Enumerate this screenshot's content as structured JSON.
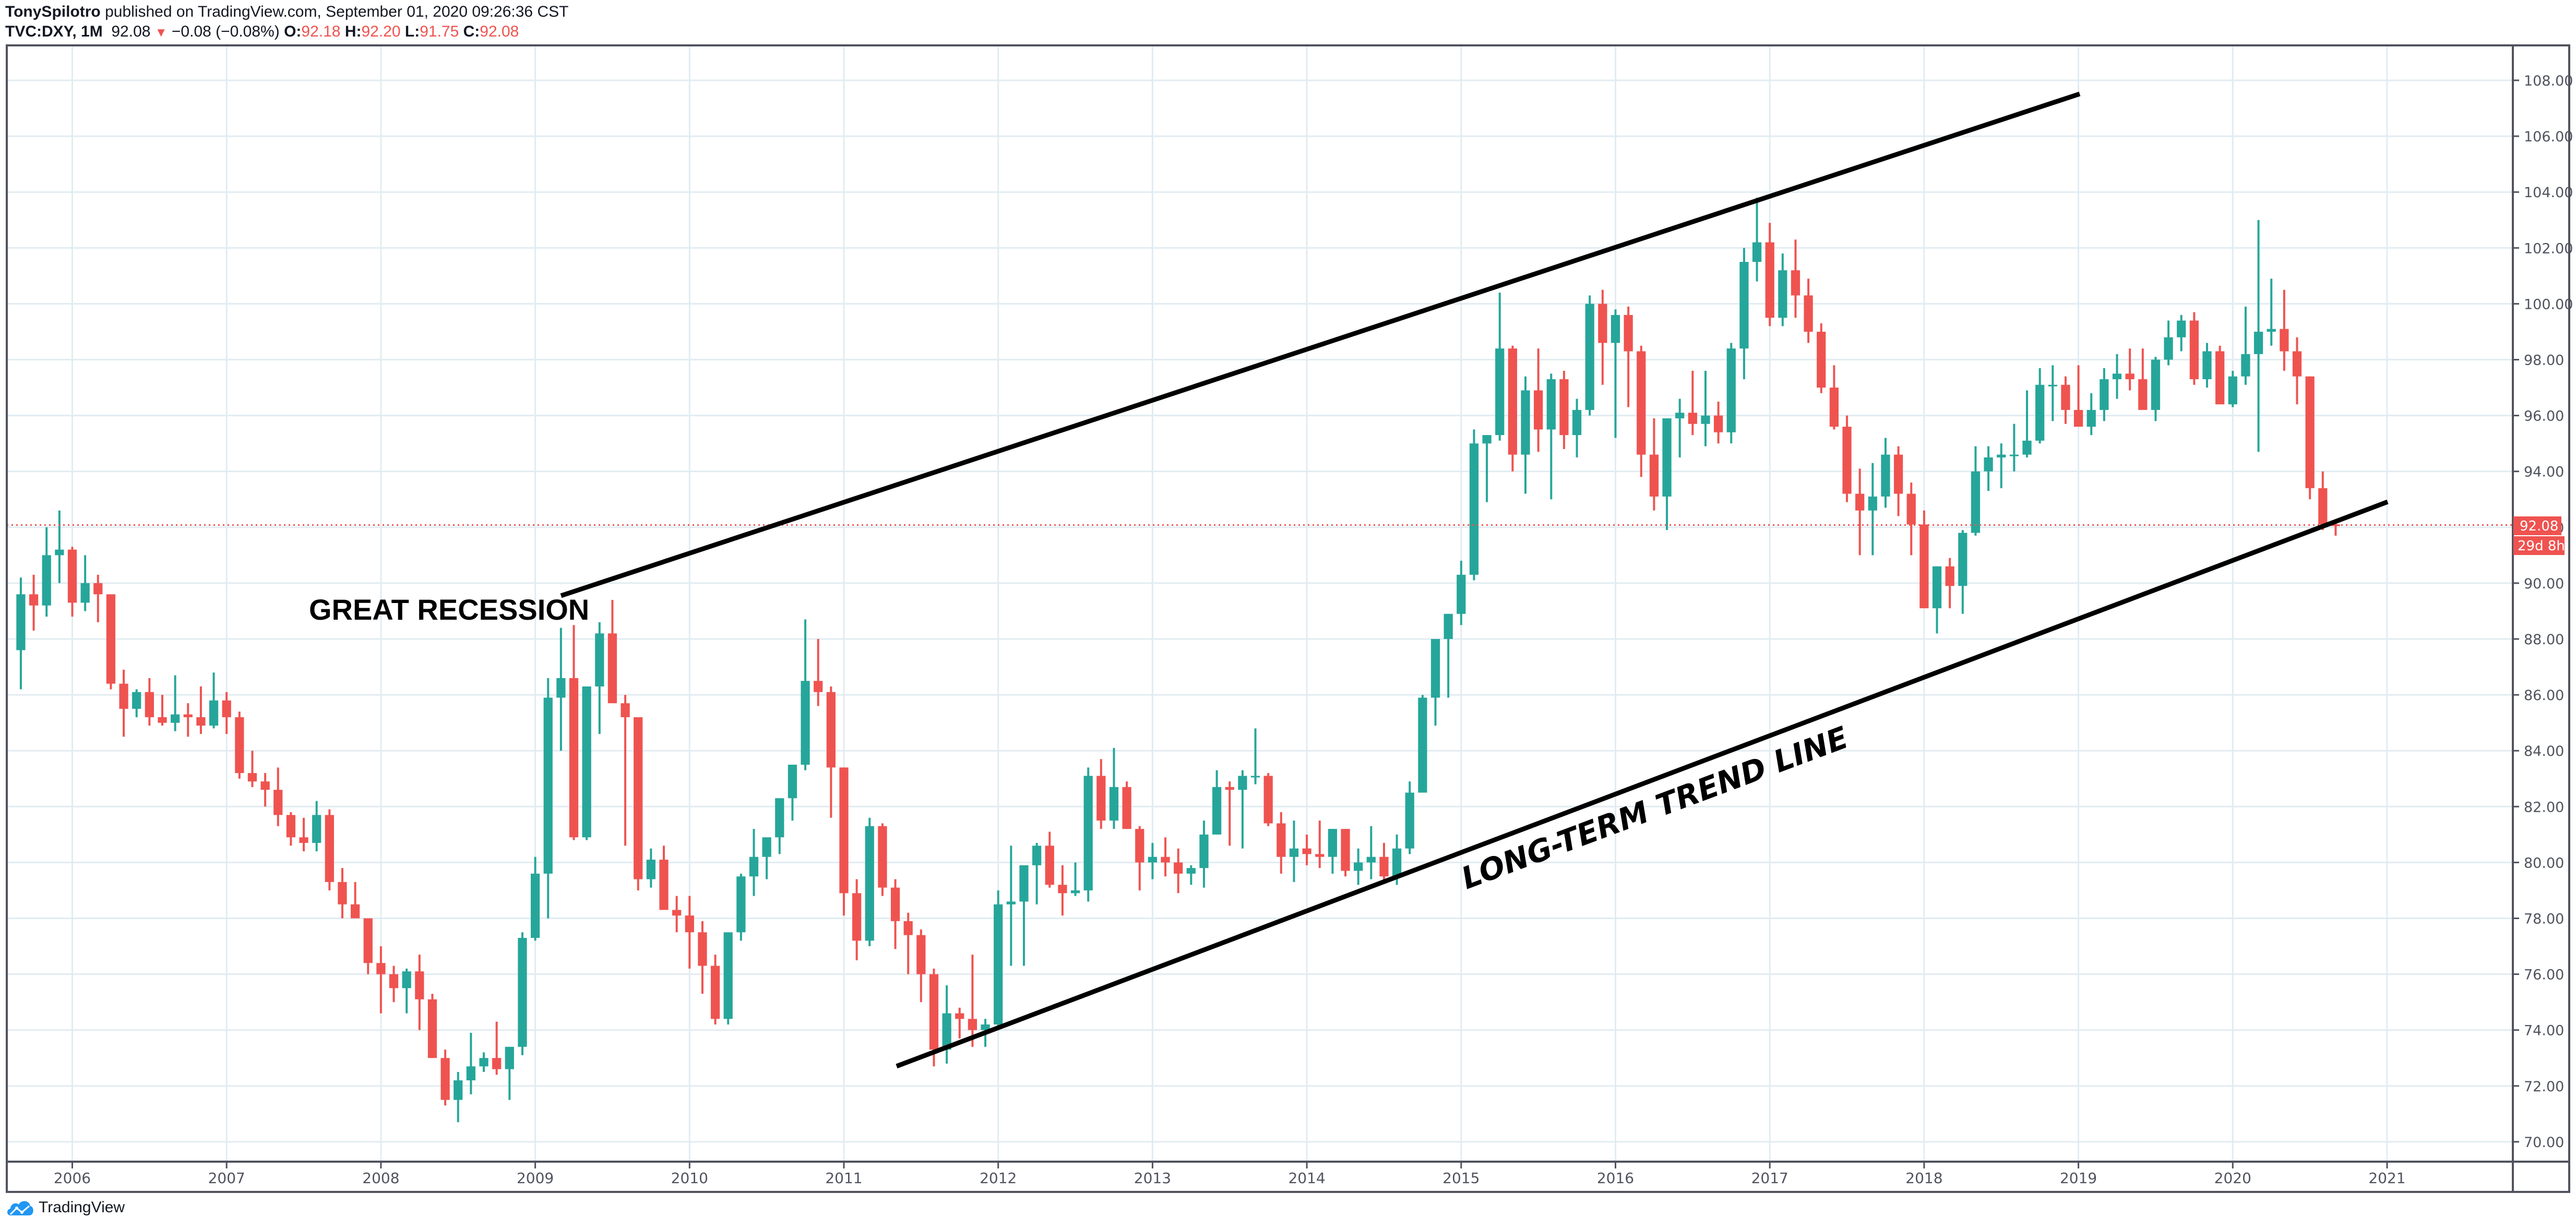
{
  "header": {
    "author": "TonySpilotro",
    "published_text": " published on TradingView.com, September 01, 2020 09:26:36 CST",
    "symbol": "TVC:DXY, 1M",
    "last": "92.08",
    "change_icon": "down-triangle-icon",
    "change": "−0.08 (−0.08%)",
    "o_label": "O:",
    "o": "92.18",
    "h_label": "H:",
    "h": "92.20",
    "l_label": "L:",
    "l": "91.75",
    "c_label": "C:",
    "c": "92.08"
  },
  "price_axis": {
    "labels": [
      "108.00",
      "106.00",
      "104.00",
      "102.00",
      "100.00",
      "98.00",
      "96.00",
      "94.00",
      "92.00",
      "90.00",
      "88.00",
      "86.00",
      "84.00",
      "82.00",
      "80.00",
      "78.00",
      "76.00",
      "74.00",
      "72.00",
      "70.00"
    ],
    "last_price_label": "92.08",
    "countdown_label": "29d 8h"
  },
  "time_axis": {
    "labels": [
      "2006",
      "2007",
      "2008",
      "2009",
      "2010",
      "2011",
      "2012",
      "2013",
      "2014",
      "2015",
      "2016",
      "2017",
      "2018",
      "2019",
      "2020",
      "2021"
    ]
  },
  "annotations": {
    "great_recession": "GREAT RECESSION",
    "trend_line": "LONG-TERM TREND LINE"
  },
  "footer": {
    "brand": "TradingView",
    "logo_icon": "tradingview-cloud-icon"
  },
  "colors": {
    "up": "#26a69a",
    "down": "#ef5350",
    "grid": "#e1ecf2",
    "axis": "#50535e",
    "trend": "#000000"
  },
  "chart_data": {
    "type": "candlestick",
    "title": "TVC:DXY, 1M",
    "xlabel": "",
    "ylabel": "",
    "ylim": [
      70,
      108
    ],
    "grid": true,
    "start": "2005-09",
    "interval": "1M",
    "ohlc": [
      [
        87.6,
        90.2,
        86.2,
        89.6
      ],
      [
        89.6,
        90.3,
        88.3,
        89.2
      ],
      [
        89.2,
        92.0,
        88.8,
        91.0
      ],
      [
        91.0,
        92.6,
        90.0,
        91.2
      ],
      [
        91.2,
        91.3,
        88.8,
        89.3
      ],
      [
        89.3,
        91.0,
        89.0,
        90.0
      ],
      [
        90.0,
        90.3,
        88.6,
        89.6
      ],
      [
        89.6,
        89.6,
        86.2,
        86.4
      ],
      [
        86.4,
        86.9,
        84.5,
        85.5
      ],
      [
        85.5,
        86.2,
        85.2,
        86.1
      ],
      [
        86.1,
        86.6,
        84.9,
        85.2
      ],
      [
        85.2,
        86.0,
        84.9,
        85.0
      ],
      [
        85.0,
        86.7,
        84.7,
        85.3
      ],
      [
        85.3,
        85.7,
        84.5,
        85.2
      ],
      [
        85.2,
        86.3,
        84.6,
        84.9
      ],
      [
        84.9,
        86.8,
        84.8,
        85.8
      ],
      [
        85.8,
        86.1,
        84.6,
        85.2
      ],
      [
        85.2,
        85.4,
        83.0,
        83.2
      ],
      [
        83.2,
        84.0,
        82.7,
        82.9
      ],
      [
        82.9,
        83.2,
        82.0,
        82.6
      ],
      [
        82.6,
        83.4,
        81.3,
        81.7
      ],
      [
        81.7,
        81.8,
        80.6,
        80.9
      ],
      [
        80.9,
        81.6,
        80.4,
        80.7
      ],
      [
        80.7,
        82.2,
        80.4,
        81.7
      ],
      [
        81.7,
        81.9,
        79.0,
        79.3
      ],
      [
        79.3,
        79.8,
        78.0,
        78.5
      ],
      [
        78.5,
        79.3,
        78.1,
        78.0
      ],
      [
        78.0,
        78.0,
        76.0,
        76.4
      ],
      [
        76.4,
        77.0,
        74.6,
        76.0
      ],
      [
        76.0,
        76.3,
        75.0,
        75.5
      ],
      [
        75.5,
        76.2,
        74.6,
        76.1
      ],
      [
        76.1,
        76.7,
        74.0,
        75.1
      ],
      [
        75.1,
        75.3,
        73.0,
        73.0
      ],
      [
        73.0,
        73.3,
        71.3,
        71.5
      ],
      [
        71.5,
        72.5,
        70.7,
        72.2
      ],
      [
        72.2,
        73.9,
        71.7,
        72.7
      ],
      [
        72.7,
        73.2,
        72.5,
        73.0
      ],
      [
        73.0,
        74.3,
        72.4,
        72.6
      ],
      [
        72.6,
        73.4,
        71.5,
        73.4
      ],
      [
        73.4,
        77.5,
        73.1,
        77.3
      ],
      [
        77.3,
        80.2,
        77.2,
        79.6
      ],
      [
        79.6,
        86.6,
        78.0,
        85.9
      ],
      [
        85.9,
        88.4,
        84.0,
        86.6
      ],
      [
        86.6,
        88.5,
        80.8,
        80.9
      ],
      [
        80.9,
        86.3,
        80.8,
        86.3
      ],
      [
        86.3,
        88.6,
        84.6,
        88.2
      ],
      [
        88.2,
        89.4,
        86.5,
        85.7
      ],
      [
        85.7,
        86.0,
        80.6,
        85.2
      ],
      [
        85.2,
        85.2,
        79.0,
        79.4
      ],
      [
        79.4,
        80.5,
        79.1,
        80.1
      ],
      [
        80.1,
        80.6,
        78.4,
        78.3
      ],
      [
        78.3,
        78.8,
        77.5,
        78.1
      ],
      [
        78.1,
        78.8,
        76.2,
        77.5
      ],
      [
        77.5,
        77.9,
        75.3,
        76.3
      ],
      [
        76.3,
        76.7,
        74.2,
        74.4
      ],
      [
        74.4,
        76.7,
        74.2,
        77.5
      ],
      [
        77.5,
        79.6,
        77.2,
        79.5
      ],
      [
        79.5,
        81.2,
        78.8,
        80.2
      ],
      [
        80.2,
        80.5,
        79.4,
        80.9
      ],
      [
        80.9,
        82.0,
        80.3,
        82.3
      ],
      [
        82.3,
        83.2,
        81.5,
        83.5
      ],
      [
        83.5,
        88.7,
        83.3,
        86.5
      ],
      [
        86.5,
        88.0,
        85.6,
        86.1
      ],
      [
        86.1,
        86.3,
        81.6,
        83.4
      ],
      [
        83.4,
        83.4,
        78.1,
        78.9
      ],
      [
        78.9,
        79.4,
        76.5,
        77.2
      ],
      [
        77.2,
        81.6,
        77.0,
        81.3
      ],
      [
        81.3,
        81.4,
        78.8,
        79.1
      ],
      [
        79.1,
        79.4,
        76.9,
        77.9
      ],
      [
        77.9,
        78.2,
        76.0,
        77.4
      ],
      [
        77.4,
        77.6,
        75.0,
        76.0
      ],
      [
        76.0,
        76.2,
        72.7,
        73.3
      ],
      [
        73.3,
        75.6,
        72.8,
        74.6
      ],
      [
        74.6,
        74.8,
        73.7,
        74.4
      ],
      [
        74.4,
        76.7,
        73.4,
        74.0
      ],
      [
        74.0,
        74.4,
        73.4,
        74.2
      ],
      [
        74.2,
        79.0,
        74.0,
        78.5
      ],
      [
        78.5,
        80.6,
        76.3,
        78.6
      ],
      [
        78.6,
        79.4,
        76.3,
        79.9
      ],
      [
        79.9,
        80.7,
        78.5,
        80.6
      ],
      [
        80.6,
        81.1,
        79.1,
        79.2
      ],
      [
        79.2,
        79.9,
        78.1,
        78.9
      ],
      [
        78.9,
        80.0,
        78.8,
        79.0
      ],
      [
        79.0,
        83.4,
        78.6,
        83.1
      ],
      [
        83.1,
        83.7,
        81.2,
        81.5
      ],
      [
        81.5,
        84.1,
        81.2,
        82.7
      ],
      [
        82.7,
        82.9,
        81.2,
        81.2
      ],
      [
        81.2,
        81.3,
        79.0,
        80.0
      ],
      [
        80.0,
        80.7,
        79.4,
        80.2
      ],
      [
        80.2,
        80.9,
        79.5,
        80.0
      ],
      [
        80.0,
        80.5,
        78.9,
        79.6
      ],
      [
        79.6,
        79.9,
        79.2,
        79.8
      ],
      [
        79.8,
        81.5,
        79.1,
        81.0
      ],
      [
        81.0,
        83.3,
        81.0,
        82.7
      ],
      [
        82.7,
        82.9,
        80.6,
        82.6
      ],
      [
        82.6,
        83.3,
        80.5,
        83.1
      ],
      [
        83.1,
        84.8,
        82.8,
        83.1
      ],
      [
        83.1,
        83.2,
        81.3,
        81.4
      ],
      [
        81.4,
        81.8,
        79.6,
        80.2
      ],
      [
        80.2,
        81.5,
        79.3,
        80.5
      ],
      [
        80.5,
        81.0,
        79.9,
        80.3
      ],
      [
        80.3,
        81.5,
        79.8,
        80.2
      ],
      [
        80.2,
        81.2,
        79.6,
        81.2
      ],
      [
        81.2,
        81.2,
        79.5,
        79.7
      ],
      [
        79.7,
        80.5,
        79.2,
        80.0
      ],
      [
        80.0,
        81.3,
        79.4,
        80.2
      ],
      [
        80.2,
        80.7,
        79.3,
        79.5
      ],
      [
        79.5,
        81.0,
        79.2,
        80.5
      ],
      [
        80.5,
        82.9,
        80.3,
        82.5
      ],
      [
        82.5,
        86.0,
        82.5,
        85.9
      ],
      [
        85.9,
        88.0,
        84.9,
        88.0
      ],
      [
        88.0,
        88.9,
        85.9,
        88.9
      ],
      [
        88.9,
        90.8,
        88.5,
        90.3
      ],
      [
        90.3,
        95.5,
        90.1,
        95.0
      ],
      [
        95.0,
        95.3,
        92.9,
        95.3
      ],
      [
        95.3,
        100.4,
        95.1,
        98.4
      ],
      [
        98.4,
        98.5,
        94.0,
        94.6
      ],
      [
        94.6,
        97.4,
        93.2,
        96.9
      ],
      [
        96.9,
        98.4,
        94.7,
        95.5
      ],
      [
        95.5,
        97.5,
        93.0,
        97.3
      ],
      [
        97.3,
        97.6,
        94.8,
        95.3
      ],
      [
        95.3,
        96.6,
        94.5,
        96.2
      ],
      [
        96.2,
        100.3,
        96.0,
        100.0
      ],
      [
        100.0,
        100.5,
        97.1,
        98.6
      ],
      [
        98.6,
        99.8,
        95.2,
        99.6
      ],
      [
        99.6,
        99.9,
        96.3,
        98.3
      ],
      [
        98.3,
        98.5,
        93.8,
        94.6
      ],
      [
        94.6,
        95.9,
        92.6,
        93.1
      ],
      [
        93.1,
        95.9,
        91.9,
        95.9
      ],
      [
        95.9,
        96.6,
        94.5,
        96.1
      ],
      [
        96.1,
        97.6,
        95.3,
        95.7
      ],
      [
        95.7,
        97.6,
        94.9,
        96.0
      ],
      [
        96.0,
        96.5,
        95.0,
        95.4
      ],
      [
        95.4,
        98.6,
        95.0,
        98.4
      ],
      [
        98.4,
        102.0,
        97.3,
        101.5
      ],
      [
        101.5,
        103.8,
        100.8,
        102.2
      ],
      [
        102.2,
        102.9,
        99.2,
        99.5
      ],
      [
        99.5,
        101.8,
        99.2,
        101.2
      ],
      [
        101.2,
        102.3,
        99.5,
        100.3
      ],
      [
        100.3,
        100.9,
        98.6,
        99.0
      ],
      [
        99.0,
        99.3,
        96.8,
        97.0
      ],
      [
        97.0,
        97.8,
        95.5,
        95.6
      ],
      [
        95.6,
        96.0,
        92.9,
        93.2
      ],
      [
        93.2,
        94.1,
        91.0,
        92.6
      ],
      [
        92.6,
        94.3,
        91.0,
        93.1
      ],
      [
        93.1,
        95.2,
        92.7,
        94.6
      ],
      [
        94.6,
        94.9,
        92.4,
        93.2
      ],
      [
        93.2,
        93.6,
        91.0,
        92.1
      ],
      [
        92.1,
        92.6,
        89.3,
        89.1
      ],
      [
        89.1,
        90.6,
        88.2,
        90.6
      ],
      [
        90.6,
        90.9,
        89.1,
        89.9
      ],
      [
        89.9,
        91.9,
        88.9,
        91.8
      ],
      [
        91.8,
        94.9,
        91.7,
        94.0
      ],
      [
        94.0,
        94.9,
        93.3,
        94.5
      ],
      [
        94.5,
        95.0,
        93.4,
        94.6
      ],
      [
        94.6,
        95.7,
        94.0,
        94.6
      ],
      [
        94.6,
        96.9,
        94.5,
        95.1
      ],
      [
        95.1,
        97.7,
        95.0,
        97.1
      ],
      [
        97.1,
        97.8,
        95.8,
        97.1
      ],
      [
        97.1,
        97.4,
        95.7,
        96.2
      ],
      [
        96.2,
        97.8,
        95.6,
        95.6
      ],
      [
        95.6,
        96.8,
        95.3,
        96.2
      ],
      [
        96.2,
        97.7,
        95.8,
        97.3
      ],
      [
        97.3,
        98.2,
        96.6,
        97.5
      ],
      [
        97.5,
        98.4,
        96.9,
        97.3
      ],
      [
        97.3,
        98.4,
        96.8,
        96.2
      ],
      [
        96.2,
        98.1,
        95.8,
        98.0
      ],
      [
        98.0,
        99.4,
        97.8,
        98.8
      ],
      [
        98.8,
        99.6,
        98.3,
        99.4
      ],
      [
        99.4,
        99.7,
        97.1,
        97.3
      ],
      [
        97.3,
        98.6,
        97.0,
        98.3
      ],
      [
        98.3,
        98.5,
        96.5,
        96.4
      ],
      [
        96.4,
        97.6,
        96.3,
        97.4
      ],
      [
        97.4,
        99.9,
        97.1,
        98.2
      ],
      [
        98.2,
        103.0,
        94.7,
        99.0
      ],
      [
        99.0,
        100.9,
        98.5,
        99.1
      ],
      [
        99.1,
        100.5,
        97.6,
        98.3
      ],
      [
        98.3,
        98.8,
        96.4,
        97.4
      ],
      [
        97.4,
        97.4,
        93.0,
        93.4
      ],
      [
        93.4,
        94.0,
        91.9,
        92.1
      ],
      [
        92.1,
        92.2,
        91.7,
        92.08
      ]
    ]
  }
}
